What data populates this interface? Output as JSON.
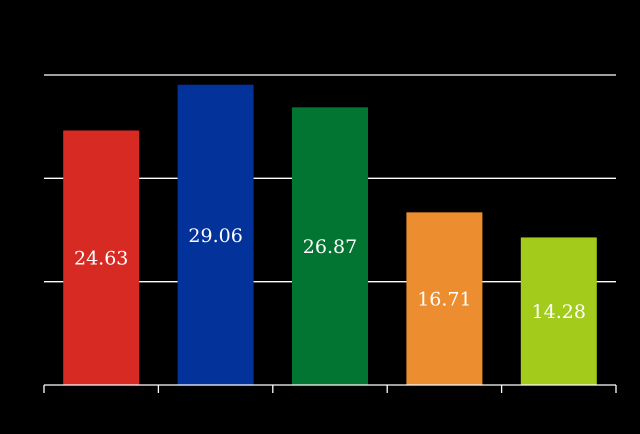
{
  "chart_data": {
    "type": "bar",
    "values": [
      24.63,
      29.06,
      26.87,
      16.71,
      14.28
    ],
    "colors": [
      "#d62a22",
      "#02329a",
      "#037533",
      "#ec8d2f",
      "#a2cb1b"
    ],
    "ylim": [
      0,
      30
    ],
    "grid": true,
    "data_labels": [
      "24.63",
      "29.06",
      "26.87",
      "16.71",
      "14.28"
    ],
    "background": "#000000",
    "axis_color": "#ffffff",
    "gridline_color": "#ffffff",
    "label_color": "#ffffff"
  }
}
